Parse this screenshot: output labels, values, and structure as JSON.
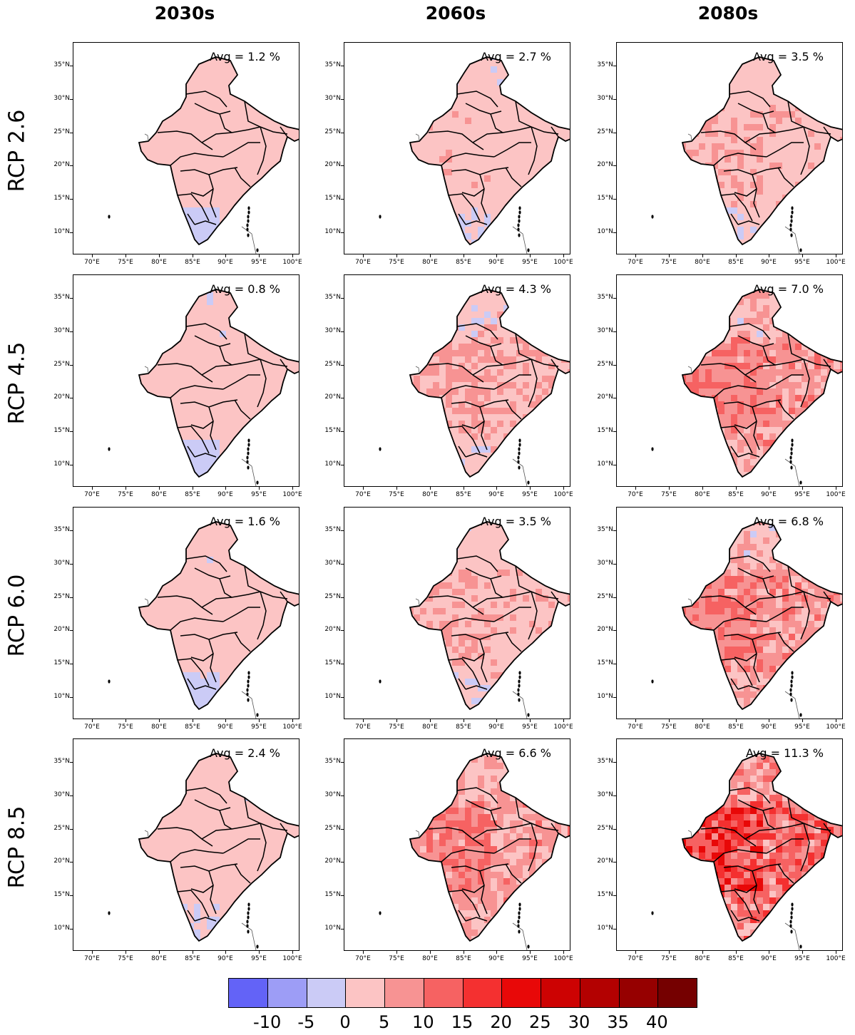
{
  "columns": [
    "2030s",
    "2060s",
    "2080s"
  ],
  "rows": [
    "RCP 2.6",
    "RCP 4.5",
    "RCP 6.0",
    "RCP 8.5"
  ],
  "lat_labels": [
    "35°N",
    "30°N",
    "25°N",
    "20°N",
    "15°N",
    "10°N"
  ],
  "lon_labels": [
    "70°E",
    "75°E",
    "80°E",
    "85°E",
    "90°E",
    "95°E",
    "100°E"
  ],
  "panels": [
    [
      {
        "avg_text": "Avg = 1.2 %",
        "avg": 1.2
      },
      {
        "avg_text": "Avg = 2.7 %",
        "avg": 2.7
      },
      {
        "avg_text": "Avg = 3.5 %",
        "avg": 3.5
      }
    ],
    [
      {
        "avg_text": "Avg = 0.8 %",
        "avg": 0.8
      },
      {
        "avg_text": "Avg = 4.3 %",
        "avg": 4.3
      },
      {
        "avg_text": "Avg = 7.0 %",
        "avg": 7.0
      }
    ],
    [
      {
        "avg_text": "Avg = 1.6 %",
        "avg": 1.6
      },
      {
        "avg_text": "Avg = 3.5 %",
        "avg": 3.5
      },
      {
        "avg_text": "Avg = 6.8 %",
        "avg": 6.8
      }
    ],
    [
      {
        "avg_text": "Avg = 2.4 %",
        "avg": 2.4
      },
      {
        "avg_text": "Avg = 6.6 %",
        "avg": 6.6
      },
      {
        "avg_text": "Avg = 11.3 %",
        "avg": 11.3
      }
    ]
  ],
  "colorbar": {
    "labels": [
      "-10",
      "-5",
      "0",
      "5",
      "10",
      "15",
      "20",
      "25",
      "30",
      "35",
      "40"
    ],
    "colors": [
      "#6363f7",
      "#9d9df6",
      "#cbcbf6",
      "#fcc4c4",
      "#f79393",
      "#f66262",
      "#f43030",
      "#e80808",
      "#cd0202",
      "#b30101",
      "#960000",
      "#750000"
    ]
  }
}
